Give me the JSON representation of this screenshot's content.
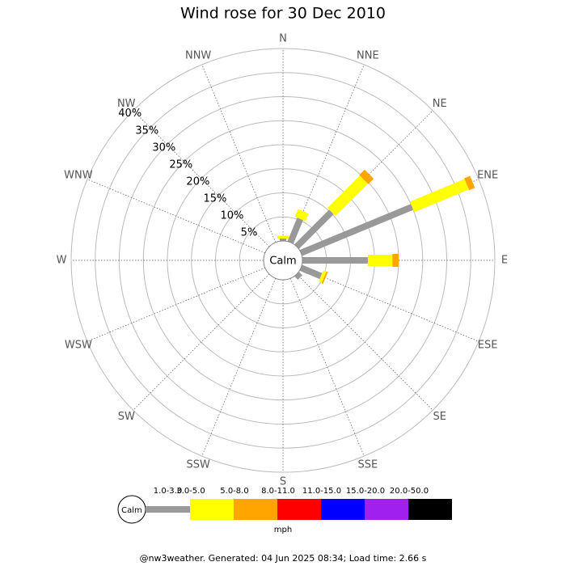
{
  "chart_data": {
    "type": "windrose",
    "title": "Wind rose for 30 Dec 2010",
    "directions": [
      "N",
      "NNE",
      "NE",
      "ENE",
      "E",
      "ESE",
      "SE",
      "SSE",
      "S",
      "SSW",
      "SW",
      "WSW",
      "W",
      "WNW",
      "NW",
      "NNW"
    ],
    "calm_label": "Calm",
    "rlim": [
      0,
      40
    ],
    "rticks": [
      {
        "value": 5,
        "label": "5%"
      },
      {
        "value": 10,
        "label": "10%"
      },
      {
        "value": 15,
        "label": "15%"
      },
      {
        "value": 20,
        "label": "20%"
      },
      {
        "value": 25,
        "label": "25%"
      },
      {
        "value": 30,
        "label": "30%"
      },
      {
        "value": 35,
        "label": "35%"
      },
      {
        "value": 40,
        "label": "40%"
      }
    ],
    "series": [
      {
        "name": "1.0-3.0",
        "color": "#999999",
        "values": [
          0.5,
          5.3,
          10.2,
          25,
          13.6,
          4.5,
          1.0,
          0,
          0,
          0,
          0,
          0,
          0,
          0,
          0,
          0
        ]
      },
      {
        "name": "3.0-5.0",
        "color": "#ffff00",
        "values": [
          0.6,
          1.7,
          9.5,
          12.3,
          5.1,
          0.7,
          0,
          0,
          0,
          0,
          0,
          0,
          0,
          0,
          0,
          0
        ]
      },
      {
        "name": "5.0-8.0",
        "color": "#ffa500",
        "values": [
          0,
          0,
          1.6,
          1.3,
          1.3,
          0.3,
          0,
          0,
          0,
          0,
          0,
          0,
          0,
          0,
          0,
          0
        ]
      },
      {
        "name": "8.0-11.0",
        "color": "#ff0000",
        "values": [
          0,
          0,
          0,
          0,
          0,
          0,
          0,
          0,
          0,
          0,
          0,
          0,
          0,
          0,
          0,
          0
        ]
      },
      {
        "name": "11.0-15.0",
        "color": "#0000ff",
        "values": [
          0,
          0,
          0,
          0,
          0,
          0,
          0,
          0,
          0,
          0,
          0,
          0,
          0,
          0,
          0,
          0
        ]
      },
      {
        "name": "15.0-20.0",
        "color": "#a020f0",
        "values": [
          0,
          0,
          0,
          0,
          0,
          0,
          0,
          0,
          0,
          0,
          0,
          0,
          0,
          0,
          0,
          0
        ]
      },
      {
        "name": "20.0-50.0",
        "color": "#000000",
        "values": [
          0,
          0,
          0,
          0,
          0,
          0,
          0,
          0,
          0,
          0,
          0,
          0,
          0,
          0,
          0,
          0
        ]
      }
    ],
    "unit": "mph",
    "footer": "@nw3weather. Generated: 04 Jun 2025 08:34; Load time: 2.66 s"
  }
}
